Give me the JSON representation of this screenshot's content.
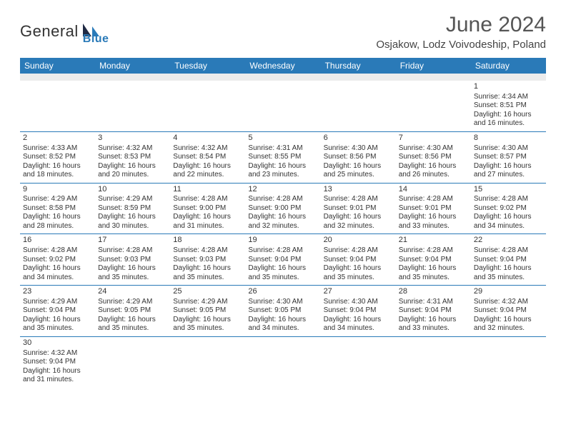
{
  "brand": {
    "name1": "General",
    "name2": "Blue",
    "sail_color": "#2a7ab8"
  },
  "title": "June 2024",
  "location": "Osjakow, Lodz Voivodeship, Poland",
  "header_bg": "#2a7ab8",
  "header_fg": "#ffffff",
  "border_color": "#2a7ab8",
  "empty_row_bg": "#ececec",
  "day_headers": [
    "Sunday",
    "Monday",
    "Tuesday",
    "Wednesday",
    "Thursday",
    "Friday",
    "Saturday"
  ],
  "weeks": [
    [
      null,
      null,
      null,
      null,
      null,
      null,
      {
        "d": "1",
        "sr": "Sunrise: 4:34 AM",
        "ss": "Sunset: 8:51 PM",
        "dl1": "Daylight: 16 hours",
        "dl2": "and 16 minutes."
      }
    ],
    [
      {
        "d": "2",
        "sr": "Sunrise: 4:33 AM",
        "ss": "Sunset: 8:52 PM",
        "dl1": "Daylight: 16 hours",
        "dl2": "and 18 minutes."
      },
      {
        "d": "3",
        "sr": "Sunrise: 4:32 AM",
        "ss": "Sunset: 8:53 PM",
        "dl1": "Daylight: 16 hours",
        "dl2": "and 20 minutes."
      },
      {
        "d": "4",
        "sr": "Sunrise: 4:32 AM",
        "ss": "Sunset: 8:54 PM",
        "dl1": "Daylight: 16 hours",
        "dl2": "and 22 minutes."
      },
      {
        "d": "5",
        "sr": "Sunrise: 4:31 AM",
        "ss": "Sunset: 8:55 PM",
        "dl1": "Daylight: 16 hours",
        "dl2": "and 23 minutes."
      },
      {
        "d": "6",
        "sr": "Sunrise: 4:30 AM",
        "ss": "Sunset: 8:56 PM",
        "dl1": "Daylight: 16 hours",
        "dl2": "and 25 minutes."
      },
      {
        "d": "7",
        "sr": "Sunrise: 4:30 AM",
        "ss": "Sunset: 8:56 PM",
        "dl1": "Daylight: 16 hours",
        "dl2": "and 26 minutes."
      },
      {
        "d": "8",
        "sr": "Sunrise: 4:30 AM",
        "ss": "Sunset: 8:57 PM",
        "dl1": "Daylight: 16 hours",
        "dl2": "and 27 minutes."
      }
    ],
    [
      {
        "d": "9",
        "sr": "Sunrise: 4:29 AM",
        "ss": "Sunset: 8:58 PM",
        "dl1": "Daylight: 16 hours",
        "dl2": "and 28 minutes."
      },
      {
        "d": "10",
        "sr": "Sunrise: 4:29 AM",
        "ss": "Sunset: 8:59 PM",
        "dl1": "Daylight: 16 hours",
        "dl2": "and 30 minutes."
      },
      {
        "d": "11",
        "sr": "Sunrise: 4:28 AM",
        "ss": "Sunset: 9:00 PM",
        "dl1": "Daylight: 16 hours",
        "dl2": "and 31 minutes."
      },
      {
        "d": "12",
        "sr": "Sunrise: 4:28 AM",
        "ss": "Sunset: 9:00 PM",
        "dl1": "Daylight: 16 hours",
        "dl2": "and 32 minutes."
      },
      {
        "d": "13",
        "sr": "Sunrise: 4:28 AM",
        "ss": "Sunset: 9:01 PM",
        "dl1": "Daylight: 16 hours",
        "dl2": "and 32 minutes."
      },
      {
        "d": "14",
        "sr": "Sunrise: 4:28 AM",
        "ss": "Sunset: 9:01 PM",
        "dl1": "Daylight: 16 hours",
        "dl2": "and 33 minutes."
      },
      {
        "d": "15",
        "sr": "Sunrise: 4:28 AM",
        "ss": "Sunset: 9:02 PM",
        "dl1": "Daylight: 16 hours",
        "dl2": "and 34 minutes."
      }
    ],
    [
      {
        "d": "16",
        "sr": "Sunrise: 4:28 AM",
        "ss": "Sunset: 9:02 PM",
        "dl1": "Daylight: 16 hours",
        "dl2": "and 34 minutes."
      },
      {
        "d": "17",
        "sr": "Sunrise: 4:28 AM",
        "ss": "Sunset: 9:03 PM",
        "dl1": "Daylight: 16 hours",
        "dl2": "and 35 minutes."
      },
      {
        "d": "18",
        "sr": "Sunrise: 4:28 AM",
        "ss": "Sunset: 9:03 PM",
        "dl1": "Daylight: 16 hours",
        "dl2": "and 35 minutes."
      },
      {
        "d": "19",
        "sr": "Sunrise: 4:28 AM",
        "ss": "Sunset: 9:04 PM",
        "dl1": "Daylight: 16 hours",
        "dl2": "and 35 minutes."
      },
      {
        "d": "20",
        "sr": "Sunrise: 4:28 AM",
        "ss": "Sunset: 9:04 PM",
        "dl1": "Daylight: 16 hours",
        "dl2": "and 35 minutes."
      },
      {
        "d": "21",
        "sr": "Sunrise: 4:28 AM",
        "ss": "Sunset: 9:04 PM",
        "dl1": "Daylight: 16 hours",
        "dl2": "and 35 minutes."
      },
      {
        "d": "22",
        "sr": "Sunrise: 4:28 AM",
        "ss": "Sunset: 9:04 PM",
        "dl1": "Daylight: 16 hours",
        "dl2": "and 35 minutes."
      }
    ],
    [
      {
        "d": "23",
        "sr": "Sunrise: 4:29 AM",
        "ss": "Sunset: 9:04 PM",
        "dl1": "Daylight: 16 hours",
        "dl2": "and 35 minutes."
      },
      {
        "d": "24",
        "sr": "Sunrise: 4:29 AM",
        "ss": "Sunset: 9:05 PM",
        "dl1": "Daylight: 16 hours",
        "dl2": "and 35 minutes."
      },
      {
        "d": "25",
        "sr": "Sunrise: 4:29 AM",
        "ss": "Sunset: 9:05 PM",
        "dl1": "Daylight: 16 hours",
        "dl2": "and 35 minutes."
      },
      {
        "d": "26",
        "sr": "Sunrise: 4:30 AM",
        "ss": "Sunset: 9:05 PM",
        "dl1": "Daylight: 16 hours",
        "dl2": "and 34 minutes."
      },
      {
        "d": "27",
        "sr": "Sunrise: 4:30 AM",
        "ss": "Sunset: 9:04 PM",
        "dl1": "Daylight: 16 hours",
        "dl2": "and 34 minutes."
      },
      {
        "d": "28",
        "sr": "Sunrise: 4:31 AM",
        "ss": "Sunset: 9:04 PM",
        "dl1": "Daylight: 16 hours",
        "dl2": "and 33 minutes."
      },
      {
        "d": "29",
        "sr": "Sunrise: 4:32 AM",
        "ss": "Sunset: 9:04 PM",
        "dl1": "Daylight: 16 hours",
        "dl2": "and 32 minutes."
      }
    ],
    [
      {
        "d": "30",
        "sr": "Sunrise: 4:32 AM",
        "ss": "Sunset: 9:04 PM",
        "dl1": "Daylight: 16 hours",
        "dl2": "and 31 minutes."
      },
      null,
      null,
      null,
      null,
      null,
      null
    ]
  ]
}
